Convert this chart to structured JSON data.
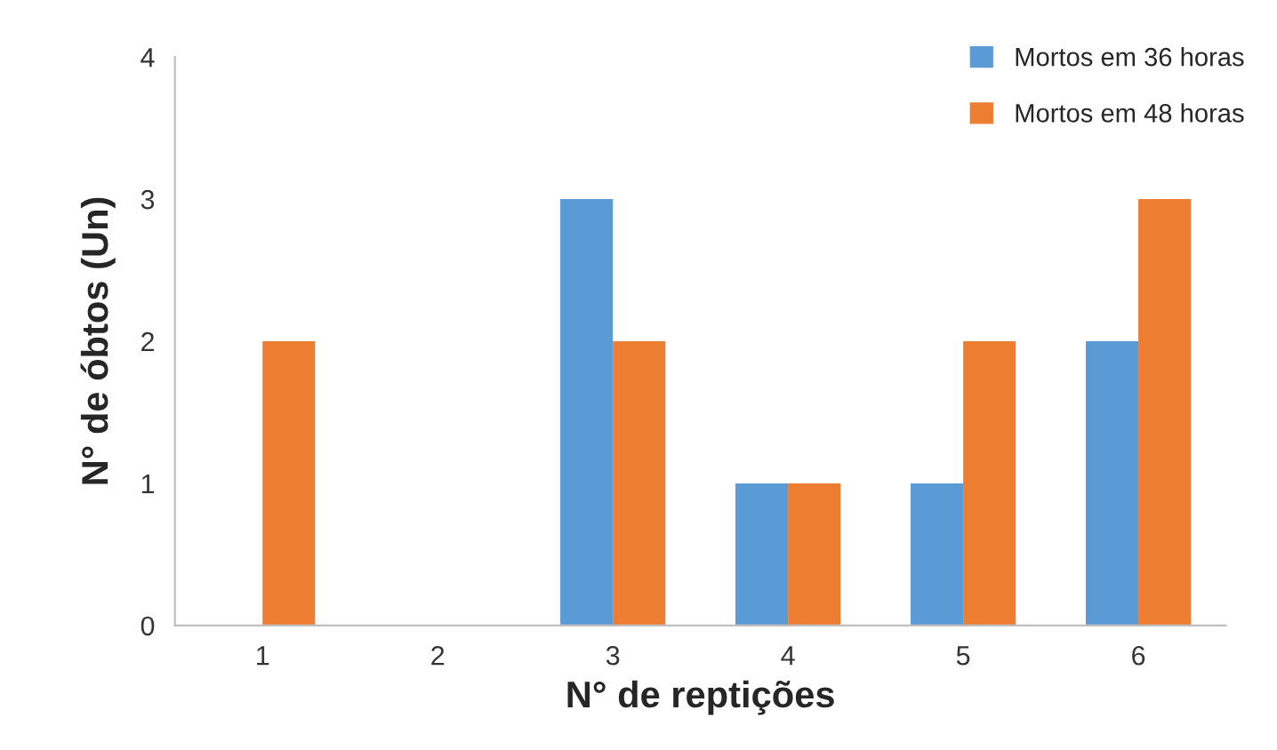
{
  "chart_data": {
    "type": "bar",
    "xlabel": "N° de reptições",
    "ylabel": "N° de óbtos (Un)",
    "categories": [
      "1",
      "2",
      "3",
      "4",
      "5",
      "6"
    ],
    "series": [
      {
        "name": "Mortos em 36 horas",
        "color": "#5b9bd5",
        "values": [
          0,
          0,
          3,
          1,
          1,
          2
        ]
      },
      {
        "name": "Mortos em 48 horas",
        "color": "#ed7d31",
        "values": [
          2,
          0,
          2,
          1,
          2,
          3
        ]
      }
    ],
    "ylim": [
      0,
      4
    ],
    "yticks": [
      0,
      1,
      2,
      3,
      4
    ],
    "grid": false,
    "legend": "top right"
  }
}
